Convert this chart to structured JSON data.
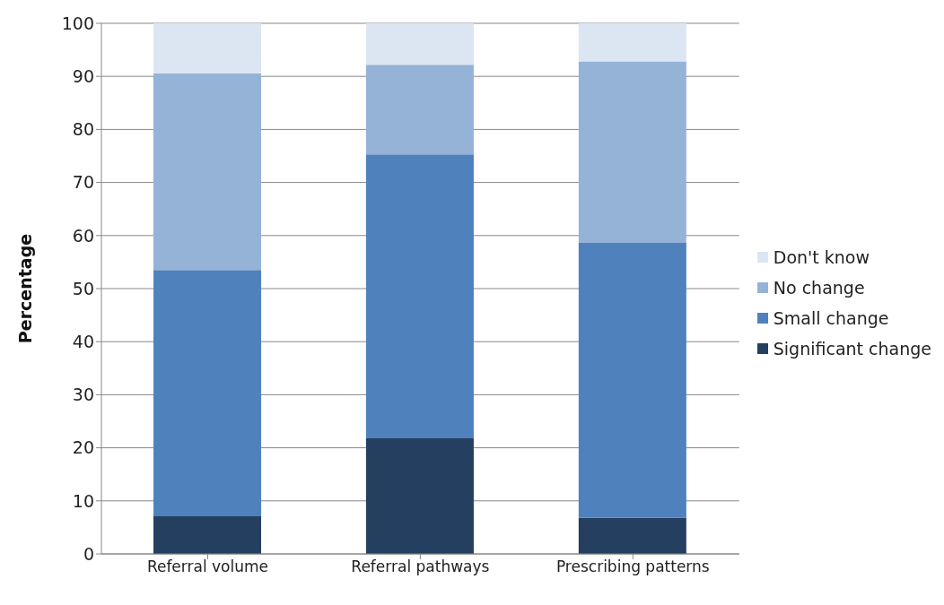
{
  "chart_data": {
    "type": "bar",
    "stacked": true,
    "ylabel": "Percentage",
    "categories": [
      "Referral volume",
      "Referral pathways",
      "Prescribing patterns"
    ],
    "series": [
      {
        "name": "Significant change",
        "color": "#243f60",
        "values": [
          7.1,
          21.8,
          6.8
        ]
      },
      {
        "name": "Small change",
        "color": "#4f81bd",
        "values": [
          46.4,
          53.5,
          51.8
        ]
      },
      {
        "name": "No change",
        "color": "#95b3d7",
        "values": [
          37.1,
          16.9,
          34.2
        ]
      },
      {
        "name": "Don't know",
        "color": "#dce6f2",
        "values": [
          9.4,
          7.8,
          7.2
        ]
      }
    ],
    "ylim": [
      0,
      100
    ],
    "yticks": [
      0,
      10,
      20,
      30,
      40,
      50,
      60,
      70,
      80,
      90,
      100
    ],
    "grid": "y",
    "legend": "right"
  }
}
